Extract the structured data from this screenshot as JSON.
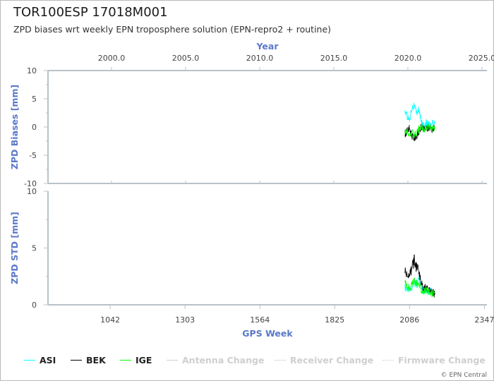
{
  "title": "TOR100ESP 17018M001",
  "subtitle": "ZPD biases wrt weekly EPN troposphere solution (EPN-repro2 + routine)",
  "credit": "© EPN Central",
  "colors": {
    "ASI": "#00ffff",
    "BEK": "#000000",
    "IGE": "#00ff00",
    "axis": "#b9c2c8",
    "legend_disabled": "#cfcfcf",
    "axis_title": "#5b79c8"
  },
  "legend": [
    {
      "name": "ASI",
      "style": "solid",
      "enabled": true
    },
    {
      "name": "BEK",
      "style": "solid",
      "enabled": true
    },
    {
      "name": "IGE",
      "style": "solid",
      "enabled": true
    },
    {
      "name": "Antenna Change",
      "style": "solid",
      "enabled": false
    },
    {
      "name": "Receiver Change",
      "style": "dashed",
      "enabled": false
    },
    {
      "name": "Firmware Change",
      "style": "dotted",
      "enabled": false
    }
  ],
  "chart_data": [
    {
      "type": "line",
      "panel": "top",
      "xlabel": "Year",
      "ylabel": "ZPD Biases [mm]",
      "x_unit": "GPS week",
      "xlim": [
        825,
        2356
      ],
      "ylim": [
        -10,
        10
      ],
      "y_ticks": [
        10,
        5,
        0,
        -5,
        -10
      ],
      "secondary_x_ticks": [
        "2000.0",
        "2005.0",
        "2010.0",
        "2015.0",
        "2020.0",
        "2025.0"
      ],
      "grid": false,
      "series": [
        {
          "name": "ASI",
          "x": [
            2070,
            2078,
            2086,
            2094,
            2102,
            2110,
            2118,
            2126,
            2134,
            2142,
            2150,
            2158,
            2166,
            2174
          ],
          "y": [
            2.8,
            2.0,
            1.2,
            3.5,
            3.8,
            2.5,
            3.2,
            1.0,
            0.2,
            0.8,
            0.5,
            0.3,
            0.8,
            0.6
          ]
        },
        {
          "name": "BEK",
          "x": [
            2070,
            2078,
            2086,
            2094,
            2102,
            2110,
            2118,
            2126,
            2134,
            2142,
            2150,
            2158,
            2166,
            2174
          ],
          "y": [
            -1.2,
            -0.8,
            -0.2,
            -1.5,
            -2.0,
            -1.6,
            -1.0,
            0.0,
            -0.5,
            -0.3,
            -0.2,
            -0.1,
            -0.4,
            -0.2
          ]
        },
        {
          "name": "IGE",
          "x": [
            2070,
            2078,
            2086,
            2094,
            2102,
            2110,
            2118,
            2126,
            2134,
            2142,
            2150,
            2158,
            2166,
            2174
          ],
          "y": [
            -1.0,
            -0.5,
            -1.2,
            -1.0,
            -1.5,
            -1.2,
            -0.5,
            0.2,
            -0.3,
            -0.2,
            0.0,
            -0.2,
            -0.3,
            -0.3
          ]
        }
      ]
    },
    {
      "type": "line",
      "panel": "bottom",
      "xlabel": "GPS Week",
      "ylabel": "ZPD STD [mm]",
      "xlim": [
        825,
        2356
      ],
      "ylim": [
        0,
        10
      ],
      "x_ticks": [
        1042,
        1303,
        1564,
        1825,
        2086,
        2347
      ],
      "y_ticks": [
        10,
        5,
        0
      ],
      "grid": false,
      "series": [
        {
          "name": "ASI",
          "x": [
            2070,
            2078,
            2086,
            2094,
            2102,
            2110,
            2118,
            2126,
            2134,
            2142,
            2150,
            2158,
            2166,
            2174
          ],
          "y": [
            1.5,
            1.3,
            1.6,
            1.4,
            2.0,
            1.8,
            2.3,
            1.5,
            1.2,
            1.3,
            1.1,
            1.2,
            1.0,
            1.1
          ]
        },
        {
          "name": "BEK",
          "x": [
            2070,
            2078,
            2086,
            2094,
            2102,
            2110,
            2118,
            2126,
            2134,
            2142,
            2150,
            2158,
            2166,
            2174
          ],
          "y": [
            3.0,
            2.5,
            2.8,
            3.2,
            4.2,
            3.5,
            3.0,
            2.0,
            1.5,
            1.6,
            1.4,
            1.2,
            1.1,
            0.9
          ]
        },
        {
          "name": "IGE",
          "x": [
            2070,
            2078,
            2086,
            2094,
            2102,
            2110,
            2118,
            2126,
            2134,
            2142,
            2150,
            2158,
            2166,
            2174
          ],
          "y": [
            2.0,
            1.6,
            1.5,
            1.8,
            2.1,
            1.9,
            1.8,
            1.4,
            1.2,
            1.3,
            1.1,
            1.0,
            1.0,
            1.1
          ]
        }
      ]
    }
  ]
}
